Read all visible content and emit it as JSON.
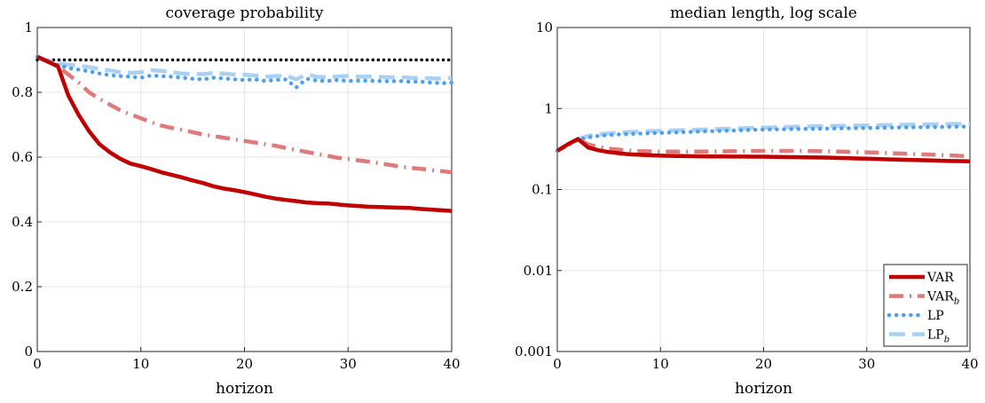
{
  "chart_data": [
    {
      "type": "line",
      "title": "coverage probability",
      "xlabel": "horizon",
      "ylabel": "",
      "xlim": [
        0,
        40
      ],
      "ylim": [
        0,
        1
      ],
      "yscale": "linear",
      "grid": true,
      "xticks": [
        0,
        10,
        20,
        30,
        40
      ],
      "xtick_labels": [
        "0",
        "10",
        "20",
        "30",
        "40"
      ],
      "yticks": [
        0,
        0.2,
        0.4,
        0.6,
        0.8,
        1
      ],
      "ytick_labels": [
        "0",
        "0.2",
        "0.4",
        "0.6",
        "0.8",
        "1"
      ],
      "reference_line": {
        "y": 0.9,
        "color": "#000000",
        "style": "dotted"
      },
      "x": [
        0,
        1,
        2,
        3,
        4,
        5,
        6,
        7,
        8,
        9,
        10,
        11,
        12,
        13,
        14,
        15,
        16,
        17,
        18,
        19,
        20,
        21,
        22,
        23,
        24,
        25,
        26,
        27,
        28,
        29,
        30,
        31,
        32,
        33,
        34,
        35,
        36,
        37,
        38,
        39,
        40
      ],
      "series": [
        {
          "key": "var",
          "color": "#c00000",
          "style": "solid",
          "values": [
            0.91,
            0.895,
            0.88,
            0.79,
            0.73,
            0.68,
            0.64,
            0.615,
            0.595,
            0.58,
            0.572,
            0.563,
            0.553,
            0.545,
            0.537,
            0.528,
            0.52,
            0.51,
            0.503,
            0.498,
            0.492,
            0.485,
            0.478,
            0.472,
            0.468,
            0.464,
            0.46,
            0.458,
            0.457,
            0.454,
            0.451,
            0.449,
            0.447,
            0.446,
            0.445,
            0.444,
            0.443,
            0.44,
            0.438,
            0.436,
            0.434
          ]
        },
        {
          "key": "var_b",
          "color": "#e07a7a",
          "style": "dash-dot",
          "values": [
            0.91,
            0.895,
            0.88,
            0.855,
            0.83,
            0.8,
            0.78,
            0.762,
            0.745,
            0.732,
            0.72,
            0.708,
            0.697,
            0.69,
            0.684,
            0.677,
            0.67,
            0.665,
            0.66,
            0.655,
            0.65,
            0.645,
            0.64,
            0.635,
            0.628,
            0.622,
            0.616,
            0.61,
            0.604,
            0.598,
            0.594,
            0.59,
            0.586,
            0.581,
            0.576,
            0.571,
            0.567,
            0.564,
            0.56,
            0.557,
            0.553
          ]
        },
        {
          "key": "lp",
          "color": "#4f9fee",
          "style": "dotted",
          "values": [
            0.91,
            0.895,
            0.885,
            0.875,
            0.87,
            0.865,
            0.858,
            0.853,
            0.85,
            0.848,
            0.845,
            0.852,
            0.85,
            0.848,
            0.845,
            0.842,
            0.84,
            0.845,
            0.843,
            0.84,
            0.838,
            0.84,
            0.835,
            0.838,
            0.84,
            0.815,
            0.842,
            0.836,
            0.835,
            0.838,
            0.835,
            0.836,
            0.836,
            0.835,
            0.834,
            0.835,
            0.832,
            0.833,
            0.83,
            0.828,
            0.83
          ]
        },
        {
          "key": "lp_b",
          "color": "#a8d1f5",
          "style": "dashed",
          "values": [
            0.91,
            0.898,
            0.89,
            0.885,
            0.882,
            0.878,
            0.872,
            0.868,
            0.862,
            0.86,
            0.862,
            0.868,
            0.866,
            0.862,
            0.858,
            0.857,
            0.856,
            0.86,
            0.858,
            0.855,
            0.854,
            0.852,
            0.848,
            0.85,
            0.852,
            0.84,
            0.855,
            0.848,
            0.846,
            0.849,
            0.85,
            0.848,
            0.849,
            0.848,
            0.846,
            0.847,
            0.845,
            0.844,
            0.843,
            0.842,
            0.845
          ]
        }
      ]
    },
    {
      "type": "line",
      "title": "median length, log scale",
      "xlabel": "horizon",
      "ylabel": "",
      "xlim": [
        0,
        40
      ],
      "ylim": [
        0.001,
        10
      ],
      "yscale": "log",
      "grid": true,
      "xticks": [
        0,
        10,
        20,
        30,
        40
      ],
      "xtick_labels": [
        "0",
        "10",
        "20",
        "30",
        "40"
      ],
      "yticks": [
        0.001,
        0.01,
        0.1,
        1,
        10
      ],
      "ytick_labels": [
        "0.001",
        "0.01",
        "0.1",
        "1",
        "10"
      ],
      "legend": {
        "position": "bottom-right",
        "entries": [
          {
            "key": "var",
            "base": "VAR",
            "sub": ""
          },
          {
            "key": "var_b",
            "base": "VAR",
            "sub": "b"
          },
          {
            "key": "lp",
            "base": "LP",
            "sub": ""
          },
          {
            "key": "lp_b",
            "base": "LP",
            "sub": "b"
          }
        ]
      },
      "x": [
        0,
        1,
        2,
        3,
        4,
        5,
        6,
        7,
        8,
        9,
        10,
        11,
        12,
        13,
        14,
        15,
        16,
        17,
        18,
        19,
        20,
        21,
        22,
        23,
        24,
        25,
        26,
        27,
        28,
        29,
        30,
        31,
        32,
        33,
        34,
        35,
        36,
        37,
        38,
        39,
        40
      ],
      "series": [
        {
          "key": "var",
          "color": "#c00000",
          "style": "solid",
          "values": [
            0.3,
            0.36,
            0.42,
            0.33,
            0.305,
            0.29,
            0.28,
            0.272,
            0.268,
            0.265,
            0.262,
            0.26,
            0.259,
            0.258,
            0.257,
            0.256,
            0.256,
            0.255,
            0.255,
            0.254,
            0.254,
            0.253,
            0.252,
            0.251,
            0.25,
            0.249,
            0.248,
            0.246,
            0.244,
            0.242,
            0.24,
            0.238,
            0.236,
            0.234,
            0.232,
            0.231,
            0.229,
            0.227,
            0.225,
            0.224,
            0.223
          ]
        },
        {
          "key": "var_b",
          "color": "#e07a7a",
          "style": "dash-dot",
          "values": [
            0.3,
            0.36,
            0.42,
            0.36,
            0.335,
            0.32,
            0.31,
            0.302,
            0.298,
            0.296,
            0.294,
            0.294,
            0.294,
            0.294,
            0.294,
            0.295,
            0.296,
            0.297,
            0.298,
            0.299,
            0.3,
            0.3,
            0.3,
            0.3,
            0.299,
            0.298,
            0.297,
            0.295,
            0.293,
            0.29,
            0.288,
            0.285,
            0.282,
            0.279,
            0.276,
            0.273,
            0.27,
            0.267,
            0.264,
            0.26,
            0.258
          ]
        },
        {
          "key": "lp",
          "color": "#4f9fee",
          "style": "dotted",
          "values": [
            0.3,
            0.35,
            0.41,
            0.44,
            0.46,
            0.47,
            0.48,
            0.485,
            0.49,
            0.495,
            0.5,
            0.505,
            0.51,
            0.515,
            0.52,
            0.525,
            0.53,
            0.535,
            0.54,
            0.545,
            0.55,
            0.552,
            0.555,
            0.558,
            0.56,
            0.562,
            0.565,
            0.567,
            0.57,
            0.572,
            0.575,
            0.577,
            0.58,
            0.582,
            0.585,
            0.587,
            0.59,
            0.592,
            0.595,
            0.597,
            0.6
          ]
        },
        {
          "key": "lp_b",
          "color": "#a8d1f5",
          "style": "dashed",
          "values": [
            0.3,
            0.36,
            0.42,
            0.46,
            0.48,
            0.495,
            0.505,
            0.512,
            0.52,
            0.525,
            0.53,
            0.535,
            0.54,
            0.545,
            0.55,
            0.555,
            0.56,
            0.565,
            0.57,
            0.575,
            0.58,
            0.585,
            0.59,
            0.595,
            0.6,
            0.603,
            0.606,
            0.609,
            0.612,
            0.615,
            0.618,
            0.621,
            0.624,
            0.627,
            0.63,
            0.633,
            0.636,
            0.639,
            0.642,
            0.645,
            0.648
          ]
        }
      ]
    }
  ]
}
